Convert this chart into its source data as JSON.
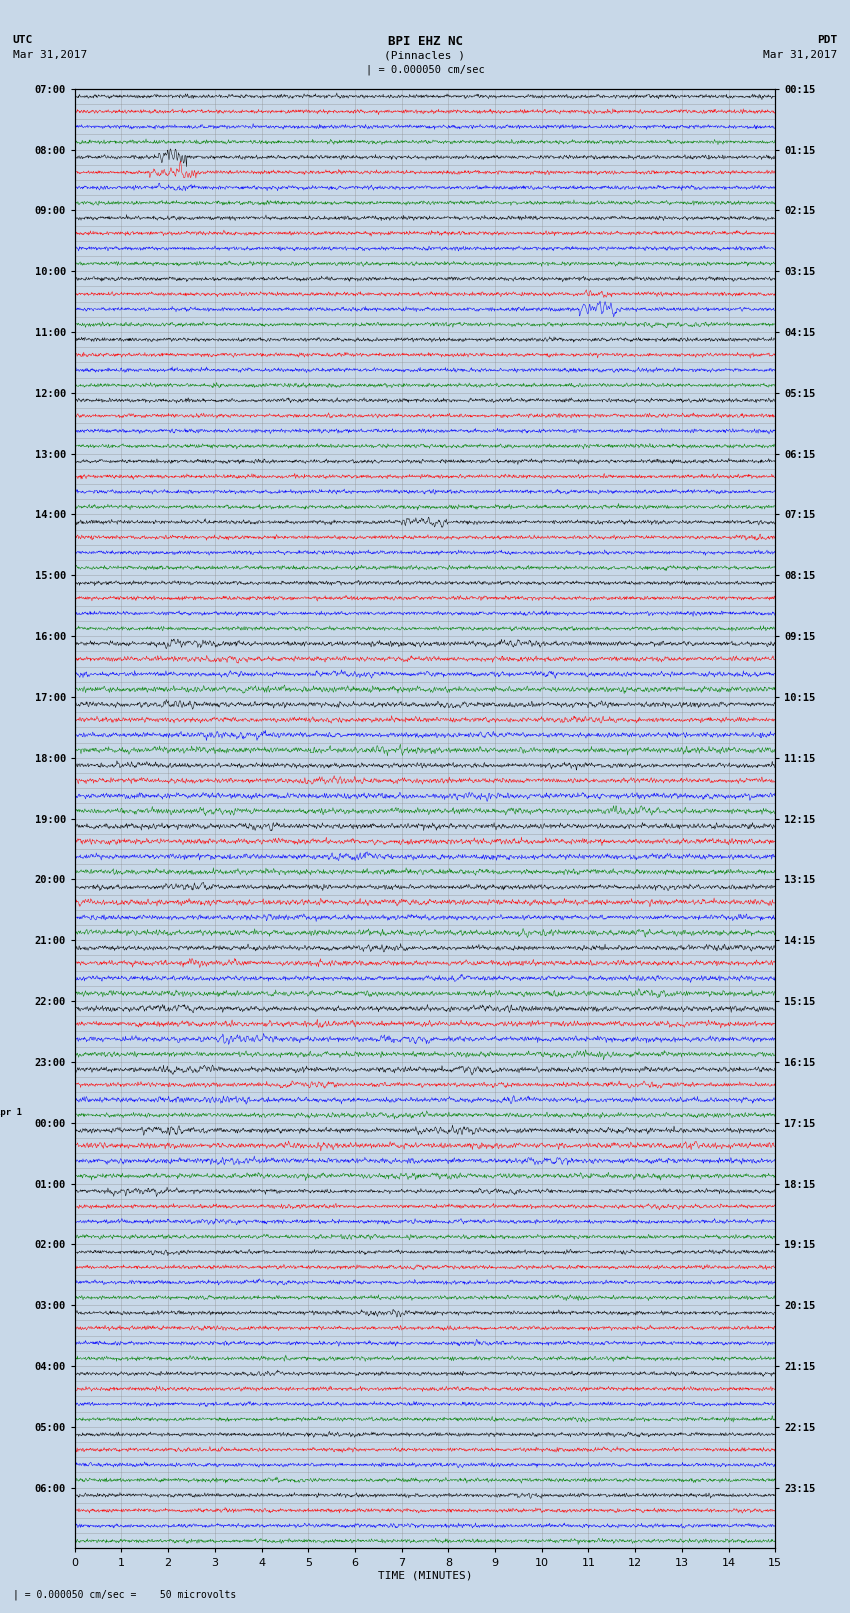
{
  "title_line1": "BPI EHZ NC",
  "title_line2": "(Pinnacles )",
  "title_line3": "| = 0.000050 cm/sec",
  "left_header_line1": "UTC",
  "left_header_line2": "Mar 31,2017",
  "right_header_line1": "PDT",
  "right_header_line2": "Mar 31,2017",
  "bottom_label": "TIME (MINUTES)",
  "bottom_note": "| = 0.000050 cm/sec =    50 microvolts",
  "x_min": 0,
  "x_max": 15,
  "left_times_hourly": [
    "07:00",
    "08:00",
    "09:00",
    "10:00",
    "11:00",
    "12:00",
    "13:00",
    "14:00",
    "15:00",
    "16:00",
    "17:00",
    "18:00",
    "19:00",
    "20:00",
    "21:00",
    "22:00",
    "23:00",
    "00:00",
    "01:00",
    "02:00",
    "03:00",
    "04:00",
    "05:00",
    "06:00"
  ],
  "right_times_hourly": [
    "00:15",
    "01:15",
    "02:15",
    "03:15",
    "04:15",
    "05:15",
    "06:15",
    "07:15",
    "08:15",
    "09:15",
    "10:15",
    "11:15",
    "12:15",
    "13:15",
    "14:15",
    "15:15",
    "16:15",
    "17:15",
    "18:15",
    "19:15",
    "20:15",
    "21:15",
    "22:15",
    "23:15"
  ],
  "apr1_row": 68,
  "colors": [
    "black",
    "red",
    "blue",
    "green"
  ],
  "n_rows": 96,
  "n_points": 1800,
  "background_color": "#c8d8e8",
  "trace_bg_color": "#c8d8e8",
  "grid_color": "#888888",
  "horiz_line_color": "#888888",
  "base_noise_amp": 0.25,
  "trace_scale": 0.42
}
